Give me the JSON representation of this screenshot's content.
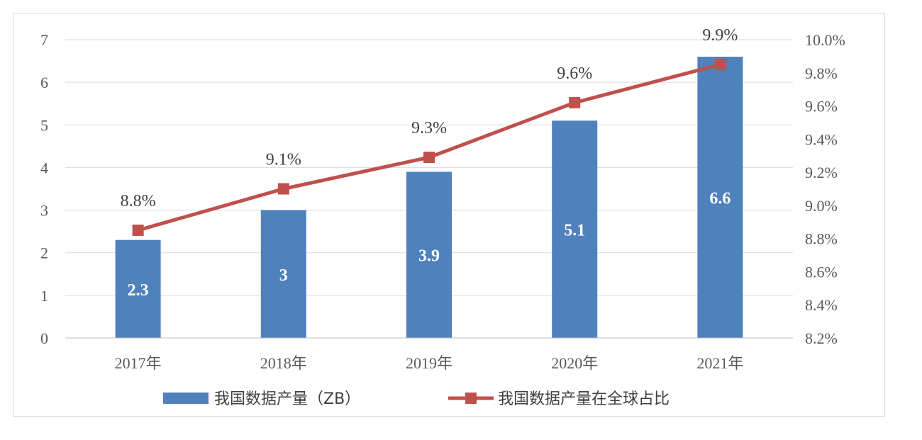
{
  "chart_data": {
    "type": "bar",
    "categories": [
      "2017年",
      "2018年",
      "2019年",
      "2020年",
      "2021年"
    ],
    "series": [
      {
        "name": "我国数据产量（ZB）",
        "type": "bar",
        "axis": "left",
        "values": [
          2.3,
          3,
          3.9,
          5.1,
          6.6
        ],
        "labels": [
          "2.3",
          "3",
          "3.9",
          "5.1",
          "6.6"
        ],
        "color": "#4f81bd"
      },
      {
        "name": "我国数据产量在全球占比",
        "type": "line",
        "axis": "right",
        "values": [
          8.85,
          9.1,
          9.29,
          9.62,
          9.85
        ],
        "labels": [
          "8.8%",
          "9.1%",
          "9.3%",
          "9.6%",
          "9.9%"
        ],
        "color": "#c0504d"
      }
    ],
    "y_left": {
      "min": 0,
      "max": 7,
      "ticks": [
        "0",
        "1",
        "2",
        "3",
        "4",
        "5",
        "6",
        "7"
      ]
    },
    "y_right": {
      "min": 8.2,
      "max": 10.0,
      "ticks": [
        "8.2%",
        "8.4%",
        "8.6%",
        "8.8%",
        "9.0%",
        "9.2%",
        "9.4%",
        "9.6%",
        "9.8%",
        "10.0%"
      ]
    },
    "grid": true,
    "legend_position": "bottom",
    "title": "",
    "xlabel": "",
    "ylabel": ""
  }
}
